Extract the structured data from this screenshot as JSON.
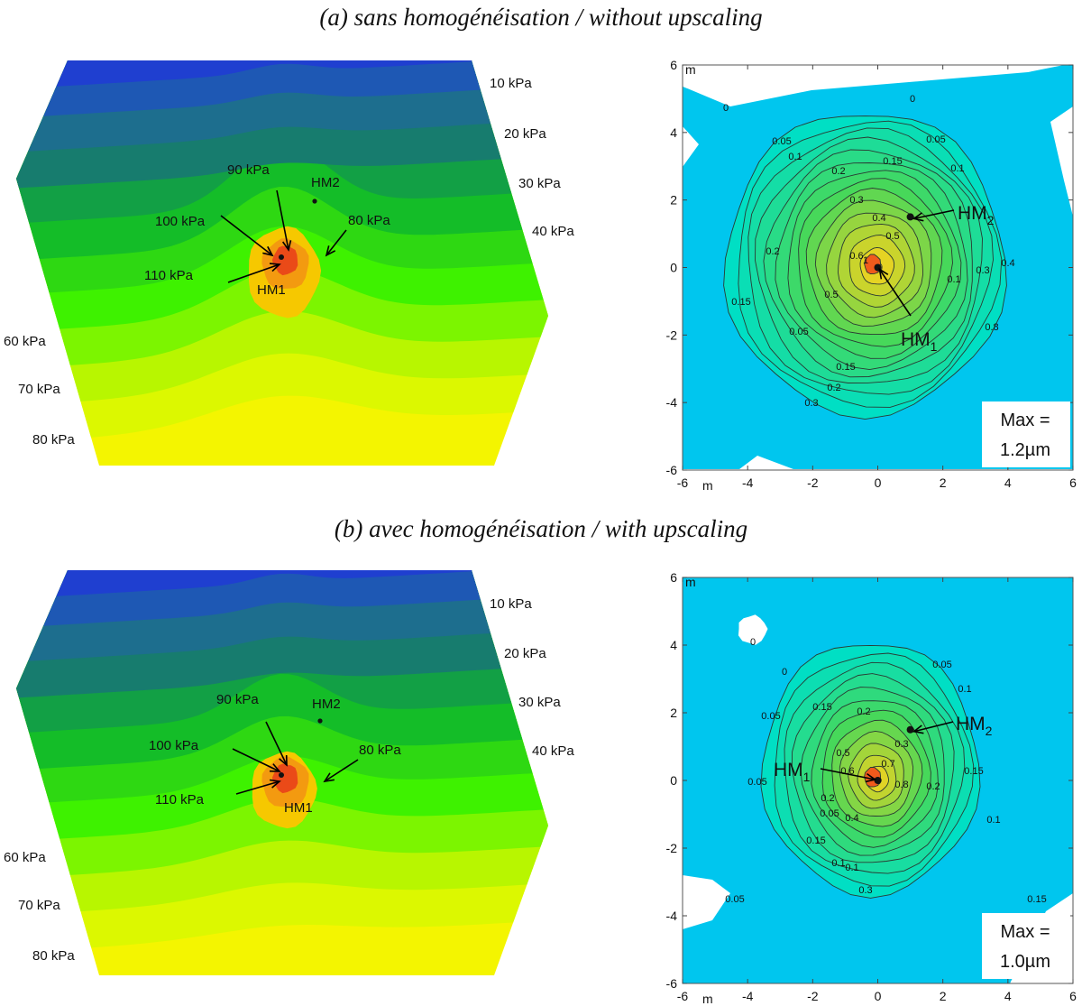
{
  "titles": {
    "a": "(a) sans homogénéisation / without upscaling",
    "b": "(b) avec homogénéisation / with upscaling"
  },
  "chart_data": [
    {
      "type": "heatmap",
      "panel": "a-left",
      "description_labels": [
        "10 kPa",
        "20 kPa",
        "30 kPa",
        "40 kPa",
        "60 kPa",
        "70 kPa",
        "80 kPa"
      ],
      "bands": [
        {
          "color": "#1f3fd0"
        },
        {
          "color": "#1e58b4"
        },
        {
          "color": "#1d6e8e"
        },
        {
          "color": "#177c6e"
        },
        {
          "color": "#12a045"
        },
        {
          "color": "#14bd28"
        },
        {
          "color": "#2ed812"
        },
        {
          "color": "#3ef200"
        },
        {
          "color": "#7cf500"
        },
        {
          "color": "#b8f600"
        },
        {
          "color": "#dcf800"
        },
        {
          "color": "#f4f500"
        }
      ],
      "annotations": {
        "p90": "90 kPa",
        "p100": "100 kPa",
        "p80": "80 kPa",
        "p110": "110 kPa",
        "hm1": "HM1",
        "hm2": "HM2"
      }
    },
    {
      "type": "heatmap",
      "panel": "a-right",
      "xlim": [
        -6,
        6
      ],
      "ylim": [
        -6,
        6
      ],
      "xticks": [
        "-6",
        "-4",
        "-2",
        "0",
        "2",
        "4",
        "6"
      ],
      "yticks": [
        "6",
        "4",
        "2",
        "0",
        "-2",
        "-4",
        "-6"
      ],
      "unit": "m",
      "max_label": "Max =",
      "max_value": "1.2µm",
      "contour_labels": [
        "0",
        "0",
        "0.05",
        "0.05",
        "0.1",
        "0.1",
        "0.15",
        "0.15",
        "0.2",
        "0.2",
        "0.3",
        "0.3",
        "0.4",
        "0.4",
        "0.5",
        "0.5",
        "0.6",
        "0.8",
        "1",
        "0.05",
        "0.1",
        "0.15",
        "0.2",
        "0.3",
        "0.05",
        "0.1",
        "0.15",
        "0.2",
        "0.05",
        "0.1"
      ],
      "points": [
        {
          "name": "HM",
          "sub": "1",
          "x": 0,
          "y": 0
        },
        {
          "name": "HM",
          "sub": "2",
          "x": 1,
          "y": 1.5
        }
      ]
    },
    {
      "type": "heatmap",
      "panel": "b-left",
      "description_labels": [
        "10 kPa",
        "20 kPa",
        "30 kPa",
        "40 kPa",
        "60 kPa",
        "70 kPa",
        "80 kPa"
      ],
      "annotations": {
        "p90": "90 kPa",
        "p100": "100 kPa",
        "p80": "80 kPa",
        "p110": "110 kPa",
        "hm1": "HM1",
        "hm2": "HM2"
      }
    },
    {
      "type": "heatmap",
      "panel": "b-right",
      "xlim": [
        -6,
        6
      ],
      "ylim": [
        -6,
        6
      ],
      "xticks": [
        "-6",
        "-4",
        "-2",
        "0",
        "2",
        "4",
        "6"
      ],
      "yticks": [
        "6",
        "4",
        "2",
        "0",
        "-2",
        "-4",
        "-6"
      ],
      "unit": "m",
      "max_label": "Max =",
      "max_value": "1.0µm",
      "contour_labels": [
        "0",
        "0",
        "0.05",
        "0.05",
        "0.1",
        "0.1",
        "0.15",
        "0.15",
        "0.2",
        "0.2",
        "0.3",
        "0.4",
        "0.5",
        "0.6",
        "0.7",
        "0.8",
        "0.05",
        "0.1",
        "0.15",
        "0.2",
        "0.3",
        "0.05",
        "0.1",
        "0.15",
        "0.05",
        "0"
      ],
      "points": [
        {
          "name": "HM",
          "sub": "1",
          "x": 0,
          "y": 0
        },
        {
          "name": "HM",
          "sub": "2",
          "x": 1,
          "y": 1.5
        }
      ]
    }
  ]
}
